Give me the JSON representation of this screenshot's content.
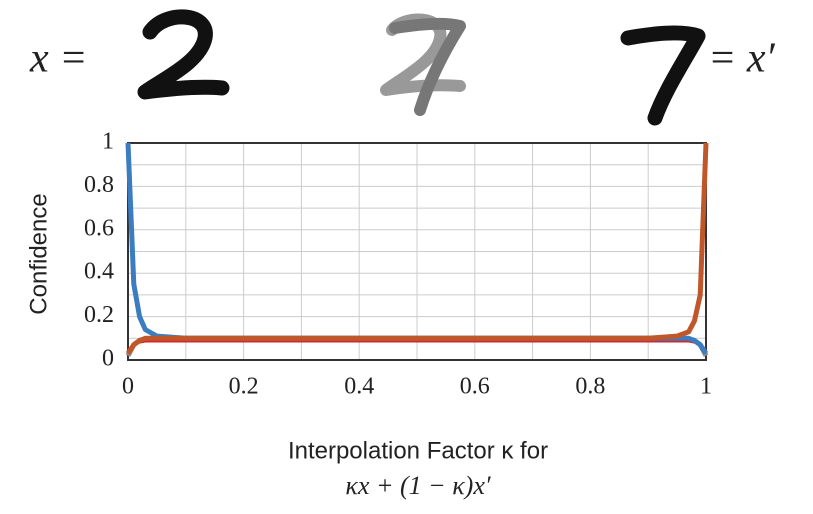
{
  "chart_data": {
    "type": "line",
    "equation_left": "x =",
    "equation_right": "= x′",
    "ylabel": "Confidence",
    "xlabel": "Interpolation Factor κ for",
    "xlabel_formula": "κx + (1 − κ)x′",
    "x": [
      0,
      0.01,
      0.02,
      0.03,
      0.05,
      0.1,
      0.2,
      0.3,
      0.4,
      0.5,
      0.6,
      0.7,
      0.8,
      0.9,
      0.95,
      0.97,
      0.98,
      0.99,
      1
    ],
    "series": [
      {
        "color": "#8a8a8a",
        "values": [
          0.02,
          0.07,
          0.09,
          0.095,
          0.1,
          0.1,
          0.1,
          0.1,
          0.1,
          0.1,
          0.1,
          0.1,
          0.1,
          0.1,
          0.1,
          0.095,
          0.09,
          0.07,
          0.02
        ]
      },
      {
        "color": "#d62728",
        "values": [
          0.05,
          0.07,
          0.08,
          0.085,
          0.085,
          0.085,
          0.085,
          0.085,
          0.085,
          0.085,
          0.085,
          0.085,
          0.085,
          0.085,
          0.085,
          0.085,
          0.08,
          0.07,
          0.05
        ]
      },
      {
        "color": "#3b7dc0",
        "values": [
          1,
          0.35,
          0.2,
          0.14,
          0.11,
          0.1,
          0.1,
          0.1,
          0.1,
          0.1,
          0.1,
          0.1,
          0.1,
          0.1,
          0.1,
          0.1,
          0.09,
          0.07,
          0.03
        ]
      },
      {
        "color": "#c0572a",
        "values": [
          0.03,
          0.07,
          0.09,
          0.1,
          0.1,
          0.1,
          0.1,
          0.1,
          0.1,
          0.1,
          0.1,
          0.1,
          0.1,
          0.1,
          0.11,
          0.13,
          0.18,
          0.3,
          1
        ]
      }
    ],
    "xlim": [
      0,
      1
    ],
    "ylim": [
      0,
      1
    ],
    "xticks": [
      0,
      0.2,
      0.4,
      0.6,
      0.8,
      1
    ],
    "yticks": [
      0,
      0.2,
      0.4,
      0.6,
      0.8,
      1
    ],
    "minor_xticks": [
      0.1,
      0.3,
      0.5,
      0.7,
      0.9
    ],
    "minor_yticks": [
      0.1,
      0.3,
      0.5,
      0.7,
      0.9
    ],
    "grid": true
  }
}
